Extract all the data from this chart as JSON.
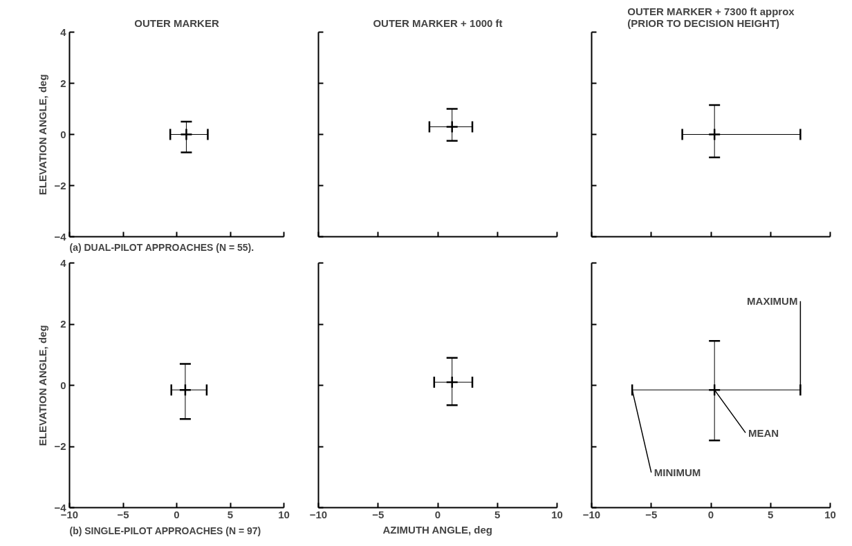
{
  "chart_data": [
    {
      "type": "scatter",
      "title": "OUTER MARKER",
      "ylabel": "ELEVATION ANGLE, deg",
      "x": [
        0.9
      ],
      "values": [
        0.0
      ],
      "xerrors": [
        [
          -0.6,
          2.9
        ]
      ],
      "errors": [
        [
          -0.7,
          0.5
        ]
      ],
      "marker": "cross",
      "color": "#000000",
      "xlim": [
        -10,
        10
      ],
      "ylim": [
        -4,
        4
      ],
      "xticks": [
        -10,
        -5,
        0,
        5,
        10
      ],
      "yticks": [
        -4,
        -2,
        0,
        2,
        4
      ],
      "tick_labels": "y",
      "annotations": [
        "(a)  DUAL-PILOT APPROACHES (N = 55)."
      ]
    },
    {
      "type": "scatter",
      "title": "OUTER MARKER + 1000 ft",
      "x": [
        1.2
      ],
      "values": [
        0.3
      ],
      "xerrors": [
        [
          -0.7,
          2.9
        ]
      ],
      "errors": [
        [
          -0.25,
          1.0
        ]
      ],
      "marker": "cross",
      "color": "#000000",
      "xlim": [
        -10,
        10
      ],
      "ylim": [
        -4,
        4
      ],
      "xticks": [
        -10,
        -5,
        0,
        5,
        10
      ],
      "yticks": [
        -4,
        -2,
        0,
        2,
        4
      ],
      "tick_labels": false
    },
    {
      "type": "scatter",
      "title": "OUTER MARKER + 7300 ft approx\n(PRIOR TO DECISION HEIGHT)",
      "x": [
        0.3
      ],
      "values": [
        0.0
      ],
      "xerrors": [
        [
          -2.4,
          7.5
        ]
      ],
      "errors": [
        [
          -0.9,
          1.15
        ]
      ],
      "marker": "cross",
      "color": "#000000",
      "xlim": [
        -10,
        10
      ],
      "ylim": [
        -4,
        4
      ],
      "xticks": [
        -10,
        -5,
        0,
        5,
        10
      ],
      "yticks": [
        -4,
        -2,
        0,
        2,
        4
      ],
      "tick_labels": false
    },
    {
      "type": "scatter",
      "ylabel": "ELEVATION ANGLE, deg",
      "x": [
        0.8
      ],
      "values": [
        -0.15
      ],
      "xerrors": [
        [
          -0.5,
          2.8
        ]
      ],
      "errors": [
        [
          -1.1,
          0.7
        ]
      ],
      "marker": "cross",
      "color": "#000000",
      "xlim": [
        -10,
        10
      ],
      "ylim": [
        -4,
        4
      ],
      "xticks": [
        -10,
        -5,
        0,
        5,
        10
      ],
      "yticks": [
        -4,
        -2,
        0,
        2,
        4
      ],
      "annotations": [
        "(b)  SINGLE-PILOT APPROACHES (N = 97)"
      ]
    },
    {
      "type": "scatter",
      "xlabel": "AZIMUTH ANGLE, deg",
      "x": [
        1.2
      ],
      "values": [
        0.1
      ],
      "xerrors": [
        [
          -0.3,
          2.9
        ]
      ],
      "errors": [
        [
          -0.65,
          0.9
        ]
      ],
      "marker": "cross",
      "color": "#000000",
      "xlim": [
        -10,
        10
      ],
      "ylim": [
        -4,
        4
      ],
      "xticks": [
        -10,
        -5,
        0,
        5,
        10
      ],
      "yticks": [
        -4,
        -2,
        0,
        2,
        4
      ],
      "tick_labels": "x"
    },
    {
      "type": "scatter",
      "x": [
        0.3
      ],
      "values": [
        -0.15
      ],
      "xerrors": [
        [
          -6.6,
          7.5
        ]
      ],
      "errors": [
        [
          -1.8,
          1.45
        ]
      ],
      "marker": "cross",
      "color": "#000000",
      "xlim": [
        -10,
        10
      ],
      "ylim": [
        -4,
        4
      ],
      "xticks": [
        -10,
        -5,
        0,
        5,
        10
      ],
      "yticks": [
        -4,
        -2,
        0,
        2,
        4
      ],
      "tick_labels": "x",
      "annotations": [
        {
          "text": "MAXIMUM",
          "x": 7.5,
          "y": -0.15
        },
        {
          "text": "MEAN",
          "x": 0.3,
          "y": -0.15
        },
        {
          "text": "MINIMUM",
          "x": -6.6,
          "y": -0.15
        }
      ]
    }
  ]
}
